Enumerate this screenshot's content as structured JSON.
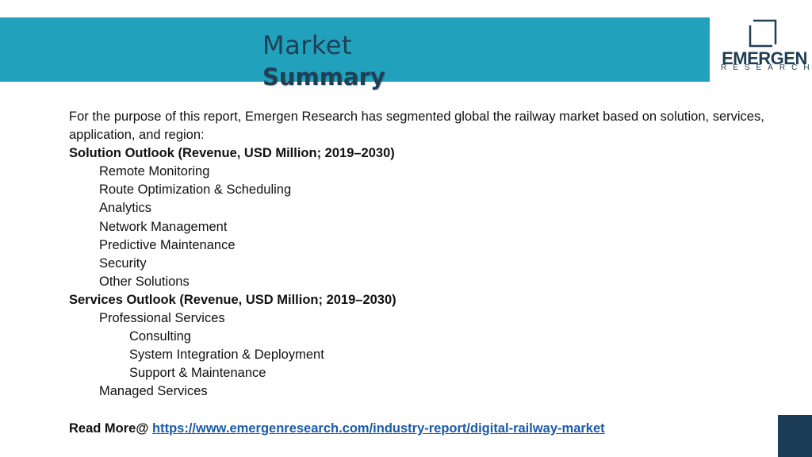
{
  "header": {
    "title_line1": "Market",
    "title_line2": "Summary"
  },
  "logo": {
    "wordmark": "EMERGEN",
    "sub": "RESEARCH"
  },
  "content": {
    "intro": "For the purpose of this report, Emergen Research has segmented global the  railway market based on solution, services, application, and region:",
    "solution_heading": "Solution Outlook (Revenue, USD Million; 2019–2030)",
    "solution_items": [
      "Remote Monitoring",
      "Route Optimization & Scheduling",
      "Analytics",
      "Network Management",
      "Predictive Maintenance",
      "Security",
      "Other Solutions"
    ],
    "services_heading": "Services Outlook (Revenue, USD Million; 2019–2030)",
    "professional_services": "Professional Services",
    "professional_items": [
      "Consulting",
      "System Integration & Deployment",
      "Support & Maintenance"
    ],
    "managed_services": "Managed Services",
    "read_more_label": "Read More@ ",
    "read_more_url": "https://www.emergenresearch.com/industry-report/digital-railway-market"
  },
  "colors": {
    "banner": "#22a1bd",
    "title": "#1f3f55",
    "link": "#1a5aa8",
    "corner": "#1b3d57"
  }
}
